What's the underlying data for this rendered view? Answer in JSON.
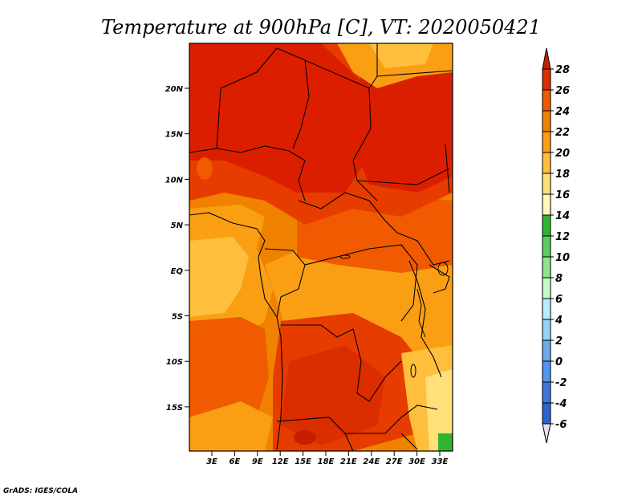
{
  "title": "Temperature at 900hPa [C], VT: 2020050421",
  "credit": "GrADS: IGES/COLA",
  "variable": "Temperature",
  "units": "C",
  "level": "900hPa",
  "valid_time": "2020050421",
  "axes": {
    "lat_labels": [
      "20N",
      "15N",
      "10N",
      "5N",
      "EQ",
      "5S",
      "10S",
      "15S"
    ],
    "lon_labels": [
      "3E",
      "6E",
      "9E",
      "12E",
      "15E",
      "18E",
      "21E",
      "24E",
      "27E",
      "30E",
      "33E"
    ]
  },
  "colorbar": {
    "labels": [
      "28",
      "26",
      "24",
      "22",
      "20",
      "18",
      "16",
      "14",
      "12",
      "10",
      "8",
      "6",
      "4",
      "2",
      "0",
      "-2",
      "-4",
      "-6"
    ],
    "colors": [
      "#c81e00",
      "#dc2d00",
      "#f05a00",
      "#f08200",
      "#fa9f14",
      "#ffbe3c",
      "#ffe07a",
      "#fffab4",
      "#32b432",
      "#5acd5a",
      "#8ce68c",
      "#c8fac8",
      "#b4f0fa",
      "#96d2fa",
      "#6eaaf0",
      "#5096f0",
      "#3c78dc",
      "#2864d2",
      "#1e3cb4",
      "#141496",
      "#e0e0f8"
    ]
  },
  "map": {
    "field_colors": {
      "hot": "#dc1e00",
      "warm": "#e63c00",
      "mid": "#f05a00",
      "orange": "#f08200",
      "light_orange": "#fa9f14",
      "pale": "#ffbe3c",
      "cream": "#ffe07a",
      "green": "#32b432"
    }
  }
}
